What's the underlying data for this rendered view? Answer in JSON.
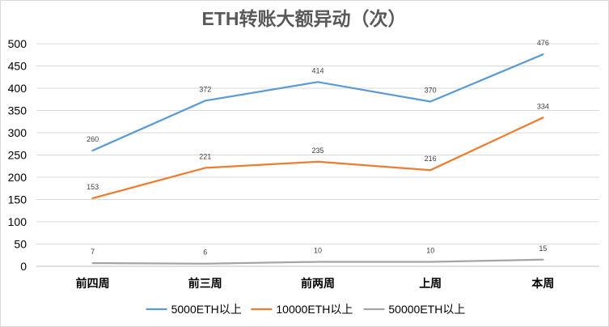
{
  "chart_data": {
    "type": "line",
    "title": "ETH转账大额异动（次）",
    "xlabel": "",
    "ylabel": "",
    "categories": [
      "前四周",
      "前三周",
      "前两周",
      "上周",
      "本周"
    ],
    "ylim": [
      0,
      500
    ],
    "yticks": [
      0,
      50,
      100,
      150,
      200,
      250,
      300,
      350,
      400,
      450,
      500
    ],
    "grid": true,
    "legend_position": "bottom",
    "series": [
      {
        "name": "5000ETH以上",
        "values": [
          260,
          372,
          414,
          370,
          476
        ],
        "color": "#5b9bd5"
      },
      {
        "name": "10000ETH以上",
        "values": [
          153,
          221,
          235,
          216,
          334
        ],
        "color": "#ed7d31"
      },
      {
        "name": "50000ETH以上",
        "values": [
          7,
          6,
          10,
          10,
          15
        ],
        "color": "#a5a5a5"
      }
    ]
  }
}
